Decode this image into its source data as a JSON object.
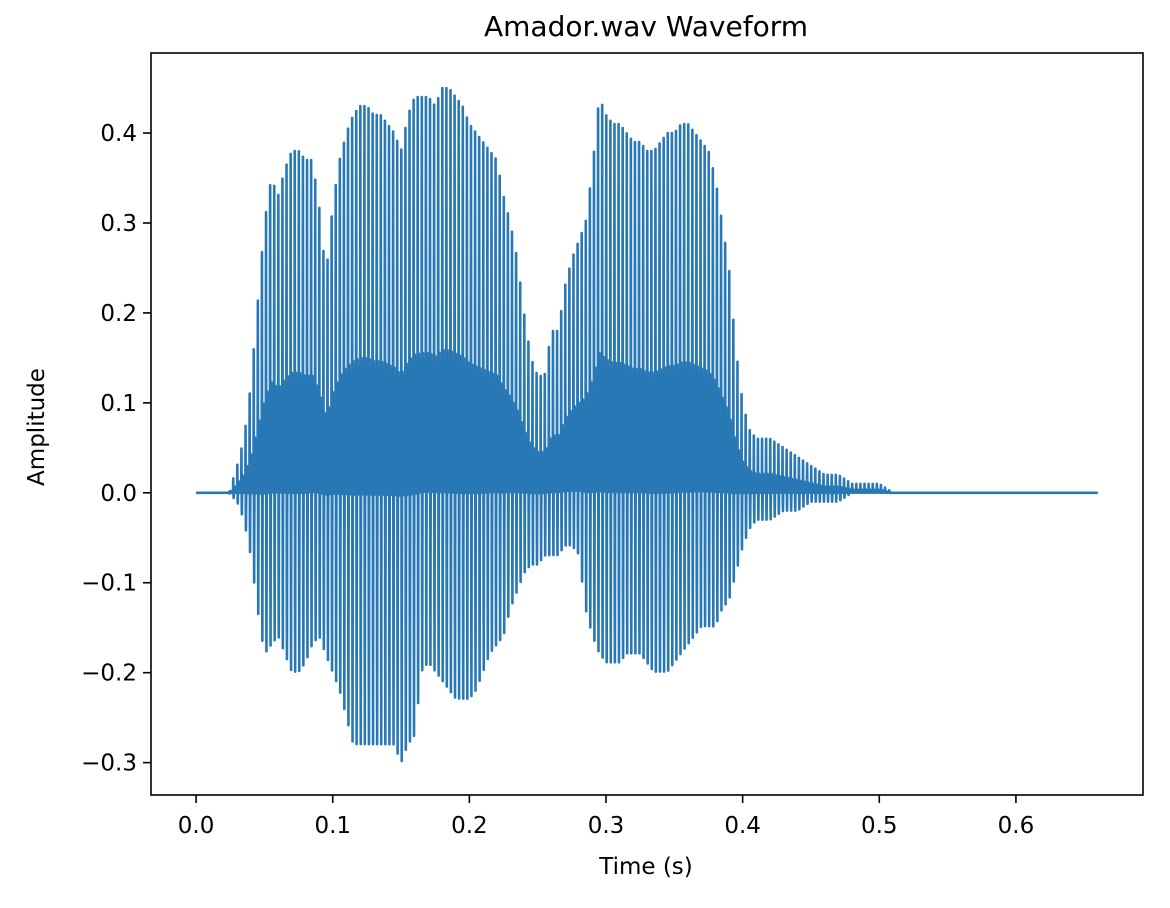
{
  "chart_data": {
    "type": "line",
    "title": "Amador.wav Waveform",
    "xlabel": "Time (s)",
    "ylabel": "Amplitude",
    "xlim": [
      -0.033,
      0.693
    ],
    "ylim": [
      -0.336,
      0.489
    ],
    "xticks": [
      0.0,
      0.1,
      0.2,
      0.3,
      0.4,
      0.5,
      0.6
    ],
    "xtick_labels": [
      "0.0",
      "0.1",
      "0.2",
      "0.3",
      "0.4",
      "0.5",
      "0.6"
    ],
    "yticks": [
      -0.3,
      -0.2,
      -0.1,
      0.0,
      0.1,
      0.2,
      0.3,
      0.4
    ],
    "ytick_labels": [
      "−0.3",
      "−0.2",
      "−0.1",
      "0.0",
      "0.1",
      "0.2",
      "0.3",
      "0.4"
    ],
    "grid": false,
    "legend": "none",
    "line_color": "#2878b5",
    "series": [
      {
        "sample_period_s": 0.003,
        "oscillating_region": [
          0.024,
          0.527
        ],
        "silence_after": [
          0.527,
          0.66
        ],
        "envelope_x": [
          0.0,
          0.024,
          0.03,
          0.035,
          0.04,
          0.045,
          0.05,
          0.055,
          0.06,
          0.065,
          0.07,
          0.075,
          0.08,
          0.085,
          0.09,
          0.095,
          0.1,
          0.105,
          0.11,
          0.115,
          0.12,
          0.125,
          0.13,
          0.135,
          0.14,
          0.145,
          0.15,
          0.155,
          0.16,
          0.165,
          0.17,
          0.175,
          0.18,
          0.185,
          0.19,
          0.195,
          0.2,
          0.205,
          0.21,
          0.215,
          0.22,
          0.225,
          0.23,
          0.235,
          0.24,
          0.245,
          0.25,
          0.255,
          0.26,
          0.265,
          0.27,
          0.275,
          0.28,
          0.285,
          0.29,
          0.295,
          0.3,
          0.305,
          0.31,
          0.315,
          0.32,
          0.325,
          0.33,
          0.335,
          0.34,
          0.345,
          0.35,
          0.355,
          0.36,
          0.365,
          0.37,
          0.375,
          0.38,
          0.385,
          0.39,
          0.395,
          0.4,
          0.405,
          0.41,
          0.42,
          0.43,
          0.44,
          0.45,
          0.46,
          0.47,
          0.48,
          0.49,
          0.5,
          0.51,
          0.52,
          0.527,
          0.66
        ],
        "envelope_max": [
          0.0,
          0.0,
          0.03,
          0.06,
          0.12,
          0.21,
          0.3,
          0.35,
          0.33,
          0.36,
          0.38,
          0.38,
          0.37,
          0.37,
          0.32,
          0.24,
          0.32,
          0.37,
          0.4,
          0.42,
          0.43,
          0.43,
          0.42,
          0.42,
          0.41,
          0.4,
          0.38,
          0.42,
          0.44,
          0.44,
          0.44,
          0.43,
          0.45,
          0.45,
          0.44,
          0.43,
          0.41,
          0.4,
          0.39,
          0.38,
          0.37,
          0.33,
          0.3,
          0.26,
          0.2,
          0.15,
          0.13,
          0.13,
          0.18,
          0.18,
          0.23,
          0.26,
          0.28,
          0.3,
          0.36,
          0.44,
          0.42,
          0.41,
          0.41,
          0.4,
          0.39,
          0.39,
          0.38,
          0.38,
          0.39,
          0.4,
          0.4,
          0.41,
          0.41,
          0.4,
          0.39,
          0.38,
          0.35,
          0.3,
          0.25,
          0.16,
          0.1,
          0.07,
          0.06,
          0.06,
          0.05,
          0.04,
          0.03,
          0.02,
          0.02,
          0.01,
          0.01,
          0.01,
          0.0,
          0.0,
          0.0,
          0.0
        ],
        "envelope_min": [
          0.0,
          0.0,
          -0.01,
          -0.03,
          -0.07,
          -0.13,
          -0.18,
          -0.17,
          -0.16,
          -0.18,
          -0.2,
          -0.2,
          -0.19,
          -0.17,
          -0.16,
          -0.18,
          -0.2,
          -0.22,
          -0.25,
          -0.28,
          -0.28,
          -0.28,
          -0.28,
          -0.28,
          -0.28,
          -0.28,
          -0.3,
          -0.28,
          -0.27,
          -0.2,
          -0.19,
          -0.2,
          -0.21,
          -0.22,
          -0.23,
          -0.23,
          -0.23,
          -0.22,
          -0.2,
          -0.18,
          -0.17,
          -0.16,
          -0.13,
          -0.11,
          -0.09,
          -0.08,
          -0.08,
          -0.07,
          -0.07,
          -0.07,
          -0.06,
          -0.06,
          -0.07,
          -0.13,
          -0.16,
          -0.18,
          -0.19,
          -0.19,
          -0.19,
          -0.18,
          -0.18,
          -0.18,
          -0.19,
          -0.2,
          -0.2,
          -0.2,
          -0.19,
          -0.18,
          -0.17,
          -0.16,
          -0.15,
          -0.15,
          -0.15,
          -0.13,
          -0.12,
          -0.09,
          -0.06,
          -0.04,
          -0.03,
          -0.03,
          -0.02,
          -0.02,
          -0.01,
          -0.01,
          -0.01,
          -0.0,
          0.0,
          0.0,
          0.0,
          0.0,
          0.0,
          0.0
        ]
      }
    ]
  }
}
